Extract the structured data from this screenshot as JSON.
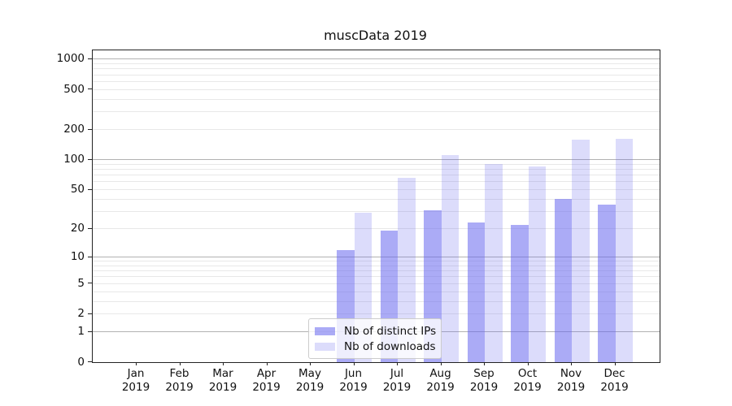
{
  "title": "muscData 2019",
  "chart_data": {
    "type": "bar",
    "title": "muscData 2019",
    "categories": [
      "Jan",
      "Feb",
      "Mar",
      "Apr",
      "May",
      "Jun",
      "Jul",
      "Aug",
      "Sep",
      "Oct",
      "Nov",
      "Dec"
    ],
    "category_year": "2019",
    "series": [
      {
        "name": "Nb of distinct IPs",
        "color": "rgba(102,102,238,0.55)",
        "values": [
          0,
          0,
          0,
          0,
          0,
          12,
          19,
          31,
          23,
          22,
          40,
          35
        ]
      },
      {
        "name": "Nb of downloads",
        "color": "rgba(102,102,238,0.23)",
        "values": [
          0,
          0,
          0,
          0,
          0,
          29,
          66,
          112,
          91,
          86,
          160,
          163
        ]
      }
    ],
    "xlabel": "",
    "ylabel": "",
    "yscale": "log1p",
    "ylim": [
      0,
      1224
    ],
    "yticks": [
      0,
      1,
      2,
      5,
      10,
      20,
      50,
      100,
      200,
      500,
      1000
    ],
    "major_gridlines": [
      1,
      10,
      100,
      1000
    ],
    "minor_gridlines": [
      2,
      3,
      4,
      5,
      6,
      7,
      8,
      9,
      20,
      30,
      40,
      50,
      60,
      70,
      80,
      90,
      200,
      300,
      400,
      500,
      600,
      700,
      800,
      900
    ],
    "grid": true,
    "legend_position": "lower center",
    "colors": {
      "bar_dark": "rgba(102,102,238,0.55)",
      "bar_light": "rgba(102,102,238,0.23)",
      "major_grid": "#b2b2b2",
      "minor_grid": "#e8e8e8",
      "spine": "#222222",
      "text": "#111111"
    }
  }
}
